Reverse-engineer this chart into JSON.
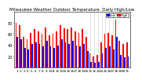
{
  "title": "Milwaukee Weather Outdoor Temperature",
  "subtitle": "Daily High/Low",
  "background_color": "#ffffff",
  "high_color": "#ff0000",
  "low_color": "#0000ff",
  "days": [
    "1",
    "2",
    "3",
    "4",
    "5",
    "6",
    "7",
    "8",
    "9",
    "10",
    "11",
    "12",
    "13",
    "14",
    "15",
    "16",
    "17",
    "18",
    "19",
    "20",
    "21",
    "22",
    "23",
    "24",
    "25",
    "26",
    "27",
    "28",
    "29",
    "30",
    "31"
  ],
  "highs": [
    80,
    75,
    55,
    50,
    62,
    68,
    65,
    60,
    72,
    58,
    60,
    65,
    75,
    70,
    68,
    72,
    65,
    62,
    68,
    55,
    25,
    20,
    22,
    45,
    60,
    62,
    58,
    85,
    48,
    42,
    45
  ],
  "lows": [
    55,
    50,
    35,
    32,
    42,
    45,
    42,
    38,
    48,
    38,
    35,
    40,
    50,
    45,
    42,
    48,
    40,
    38,
    42,
    30,
    10,
    8,
    10,
    25,
    35,
    38,
    32,
    55,
    22,
    18,
    20
  ],
  "dotted_cols": [
    20,
    21,
    22,
    23,
    24,
    25,
    26
  ],
  "ylim": [
    0,
    100
  ],
  "ytick_vals": [
    20,
    40,
    60,
    80
  ],
  "ytick_labels": [
    "20",
    "40",
    "60",
    "80"
  ],
  "ylabel_fontsize": 3.5,
  "xlabel_fontsize": 3.0,
  "title_fontsize": 4.0,
  "legend_fontsize": 3.0,
  "bar_width": 0.38
}
